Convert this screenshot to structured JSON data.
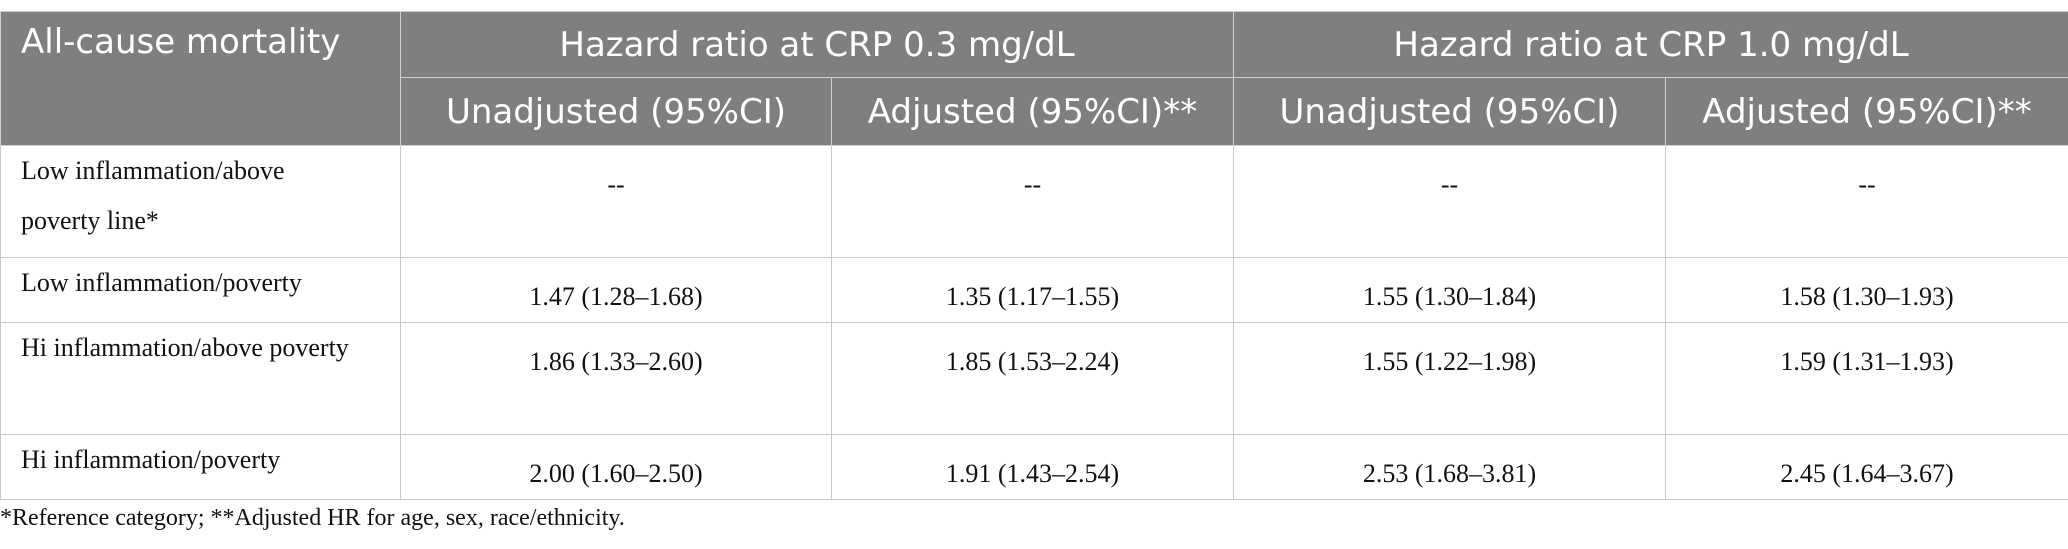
{
  "table": {
    "header": {
      "corner": "All-cause mortality",
      "groups": [
        "Hazard ratio at CRP 0.3 mg/dL",
        "Hazard ratio at CRP 1.0 mg/dL"
      ],
      "subheaders": [
        "Unadjusted (95%CI)",
        "Adjusted (95%CI)**",
        "Unadjusted (95%CI)",
        "Adjusted (95%CI)**"
      ]
    },
    "rows": [
      [
        "Low inflammation/above poverty line*",
        "--",
        "--",
        "--",
        "--"
      ],
      [
        "Low inflammation/poverty",
        "1.47 (1.28–1.68)",
        "1.35 (1.17–1.55)",
        "1.55 (1.30–1.84)",
        "1.58 (1.30–1.93)"
      ],
      [
        "Hi inflammation/above poverty",
        "1.86 (1.33–2.60)",
        "1.85 (1.53–2.24)",
        "1.55 (1.22–1.98)",
        "1.59 (1.31–1.93)"
      ],
      [
        "Hi inflammation/poverty",
        "2.00 (1.60–2.50)",
        "1.91 (1.43–2.54)",
        "2.53 (1.68–3.81)",
        "2.45 (1.64–3.67)"
      ]
    ],
    "footnote": "*Reference category; **Adjusted HR for age, sex, race/ethnicity."
  }
}
